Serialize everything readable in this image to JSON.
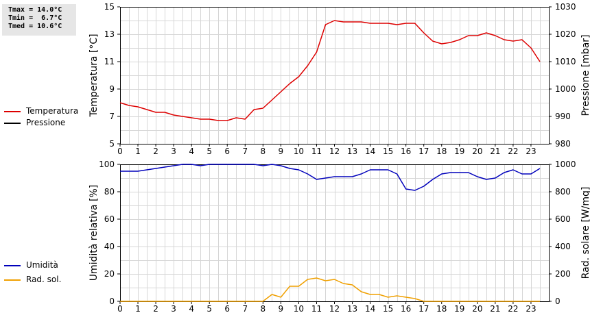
{
  "stats": {
    "lines": [
      "Tmax = 14.0°C",
      "Tmin =  6.7°C",
      "Tmed = 10.6°C"
    ]
  },
  "legend_top": [
    {
      "label": "Temperatura",
      "color": "#dd0000"
    },
    {
      "label": "Pressione",
      "color": "#000000"
    }
  ],
  "legend_bottom": [
    {
      "label": "Umidità",
      "color": "#0000bb"
    },
    {
      "label": "Rad. sol.",
      "color": "#f0a000"
    }
  ],
  "chart_data": [
    {
      "type": "line",
      "xlim": [
        0,
        24
      ],
      "xticks": [
        0,
        1,
        2,
        3,
        4,
        5,
        6,
        7,
        8,
        9,
        10,
        11,
        12,
        13,
        14,
        15,
        16,
        17,
        18,
        19,
        20,
        21,
        22,
        23
      ],
      "ylabel": "Temperatura [°C]",
      "ylim": [
        5,
        15
      ],
      "yticks": [
        5,
        7,
        9,
        11,
        13,
        15
      ],
      "y2label": "Pressione [mbar]",
      "y2lim": [
        980,
        1030
      ],
      "y2ticks": [
        980,
        990,
        1000,
        1010,
        1020,
        1030
      ],
      "grid": true,
      "series": [
        {
          "name": "Temperatura",
          "color": "#dd0000",
          "axis": "left",
          "x": [
            0,
            0.5,
            1,
            1.5,
            2,
            2.5,
            3,
            3.5,
            4,
            4.5,
            5,
            5.5,
            6,
            6.5,
            7,
            7.5,
            8,
            8.5,
            9,
            9.5,
            10,
            10.5,
            11,
            11.5,
            12,
            12.5,
            13,
            13.5,
            14,
            14.5,
            15,
            15.5,
            16,
            16.5,
            17,
            17.5,
            18,
            18.5,
            19,
            19.5,
            20,
            20.5,
            21,
            21.5,
            22,
            22.5,
            23,
            23.5
          ],
          "values": [
            8.0,
            7.8,
            7.7,
            7.5,
            7.3,
            7.3,
            7.1,
            7.0,
            6.9,
            6.8,
            6.8,
            6.7,
            6.7,
            6.9,
            6.8,
            7.5,
            7.6,
            8.2,
            8.8,
            9.4,
            9.9,
            10.7,
            11.7,
            13.7,
            14.0,
            13.9,
            13.9,
            13.9,
            13.8,
            13.8,
            13.8,
            13.7,
            13.8,
            13.8,
            13.1,
            12.5,
            12.3,
            12.4,
            12.6,
            12.9,
            12.9,
            13.1,
            12.9,
            12.6,
            12.5,
            12.6,
            12.0,
            11.0
          ]
        },
        {
          "name": "Pressione",
          "color": "#000000",
          "axis": "right",
          "x": [],
          "values": []
        }
      ]
    },
    {
      "type": "line",
      "xlim": [
        0,
        24
      ],
      "xticks": [
        0,
        1,
        2,
        3,
        4,
        5,
        6,
        7,
        8,
        9,
        10,
        11,
        12,
        13,
        14,
        15,
        16,
        17,
        18,
        19,
        20,
        21,
        22,
        23
      ],
      "ylabel": "Umidità relativa [%]",
      "ylim": [
        0,
        100
      ],
      "yticks": [
        0,
        20,
        40,
        60,
        80,
        100
      ],
      "y2label": "Rad. solare [W/mq]",
      "y2lim": [
        0,
        1000
      ],
      "y2ticks": [
        0,
        200,
        400,
        600,
        800,
        1000
      ],
      "grid": true,
      "series": [
        {
          "name": "Umidità",
          "color": "#0000bb",
          "axis": "left",
          "x": [
            0,
            0.5,
            1,
            1.5,
            2,
            2.5,
            3,
            3.5,
            4,
            4.5,
            5,
            5.5,
            6,
            6.5,
            7,
            7.5,
            8,
            8.5,
            9,
            9.5,
            10,
            10.5,
            11,
            11.5,
            12,
            12.5,
            13,
            13.5,
            14,
            14.5,
            15,
            15.5,
            16,
            16.5,
            17,
            17.5,
            18,
            18.5,
            19,
            19.5,
            20,
            20.5,
            21,
            21.5,
            22,
            22.5,
            23,
            23.5
          ],
          "values": [
            95,
            95,
            95,
            96,
            97,
            98,
            99,
            100,
            100,
            99,
            100,
            100,
            100,
            100,
            100,
            100,
            99,
            100,
            99,
            97,
            96,
            93,
            89,
            90,
            91,
            91,
            91,
            93,
            96,
            96,
            96,
            93,
            82,
            81,
            84,
            89,
            93,
            94,
            94,
            94,
            91,
            89,
            90,
            94,
            96,
            93,
            93,
            97
          ]
        },
        {
          "name": "Rad. sol.",
          "color": "#f0a000",
          "axis": "right",
          "x": [
            0,
            1,
            2,
            3,
            4,
            5,
            6,
            7,
            8,
            8.5,
            9,
            9.5,
            10,
            10.5,
            11,
            11.5,
            12,
            12.5,
            13,
            13.5,
            14,
            14.5,
            15,
            15.5,
            16,
            16.5,
            17,
            18,
            19,
            20,
            21,
            22,
            23,
            23.5
          ],
          "values": [
            0,
            0,
            0,
            0,
            0,
            0,
            0,
            0,
            0,
            50,
            30,
            110,
            110,
            160,
            170,
            150,
            160,
            130,
            120,
            70,
            50,
            50,
            30,
            40,
            30,
            20,
            0,
            0,
            0,
            0,
            0,
            0,
            0,
            0
          ]
        }
      ]
    }
  ]
}
